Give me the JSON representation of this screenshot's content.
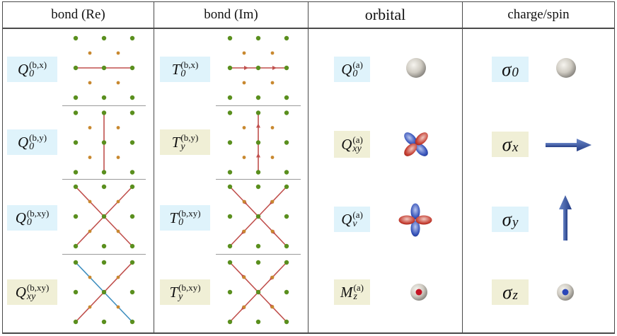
{
  "headers": [
    "bond (Re)",
    "bond (Im)",
    "orbital",
    "charge/spin"
  ],
  "bond_re": [
    {
      "base": "Q",
      "sub": "0",
      "sup": "(b,x)",
      "color": "blue"
    },
    {
      "base": "Q",
      "sub": "0",
      "sup": "(b,y)",
      "color": "blue"
    },
    {
      "base": "Q",
      "sub": "0",
      "sup": "(b,xy)",
      "color": "blue"
    },
    {
      "base": "Q",
      "sub": "xy",
      "sup": "(b,xy)",
      "color": "yellow"
    }
  ],
  "bond_im": [
    {
      "base": "T",
      "sub": "0",
      "sup": "(b,x)",
      "color": "blue"
    },
    {
      "base": "T",
      "sub": "y",
      "sup": "(b,y)",
      "color": "yellow"
    },
    {
      "base": "T",
      "sub": "0",
      "sup": "(b,xy)",
      "color": "blue"
    },
    {
      "base": "T",
      "sub": "y",
      "sup": "(b,xy)",
      "color": "yellow"
    }
  ],
  "orbital": [
    {
      "base": "Q",
      "sub": "0",
      "sup": "(a)",
      "color": "blue",
      "icon": "sphere-icon"
    },
    {
      "base": "Q",
      "sub": "xy",
      "sup": "(a)",
      "color": "yellow",
      "icon": "dxy-orbital-icon"
    },
    {
      "base": "Q",
      "sub": "v",
      "sup": "(a)",
      "color": "blue",
      "icon": "dx2y2-orbital-icon"
    },
    {
      "base": "M",
      "sub": "z",
      "sup": "(a)",
      "color": "yellow",
      "icon": "sphere-red-dot-icon"
    }
  ],
  "charge_spin": [
    {
      "base": "σ",
      "sub": "0",
      "color": "blue",
      "icon": "sphere-icon"
    },
    {
      "base": "σ",
      "sub": "x",
      "color": "yellow",
      "icon": "arrow-right-icon"
    },
    {
      "base": "σ",
      "sub": "y",
      "color": "blue",
      "icon": "arrow-up-icon"
    },
    {
      "base": "σ",
      "sub": "z",
      "color": "yellow",
      "icon": "sphere-blue-dot-icon"
    }
  ],
  "colors": {
    "chip_blue": "#dff3fb",
    "chip_yellow": "#f0efd6",
    "site": "#5a8f1e",
    "interstitial": "#c8882f",
    "bond_red": "#c0504d",
    "bond_blue": "#3f8fbf",
    "spin_arrow": "#3a5a9e"
  }
}
